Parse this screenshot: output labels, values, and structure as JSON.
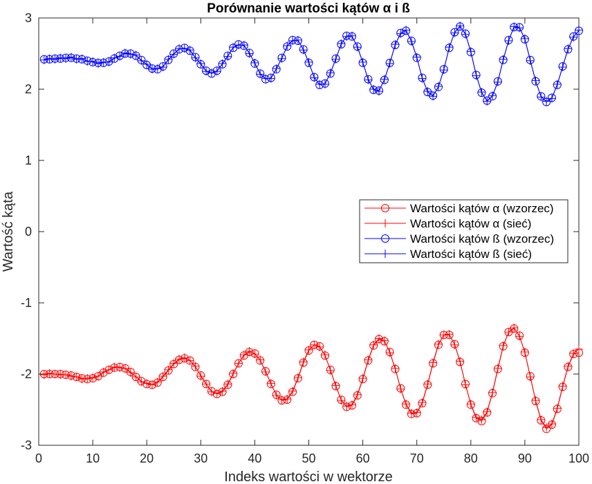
{
  "chart_data": {
    "type": "line",
    "title": "Porównanie wartości kątów α i ß",
    "xlabel": "Indeks wartości w wektorze",
    "ylabel": "Wartość kąta",
    "xlim": [
      0,
      100
    ],
    "ylim": [
      -3,
      3
    ],
    "xticks": [
      0,
      10,
      20,
      30,
      40,
      50,
      60,
      70,
      80,
      90,
      100
    ],
    "yticks": [
      -3,
      -2,
      -1,
      0,
      1,
      2,
      3
    ],
    "xtick_labels": [
      "0",
      "10",
      "20",
      "30",
      "40",
      "50",
      "60",
      "70",
      "80",
      "90",
      "100"
    ],
    "ytick_labels": [
      "-3",
      "-2",
      "-1",
      "0",
      "1",
      "2",
      "3"
    ],
    "grid": false,
    "legend_position": "center-right",
    "x": [
      1,
      2,
      3,
      4,
      5,
      6,
      7,
      8,
      9,
      10,
      11,
      12,
      13,
      14,
      15,
      16,
      17,
      18,
      19,
      20,
      21,
      22,
      23,
      24,
      25,
      26,
      27,
      28,
      29,
      30,
      31,
      32,
      33,
      34,
      35,
      36,
      37,
      38,
      39,
      40,
      41,
      42,
      43,
      44,
      45,
      46,
      47,
      48,
      49,
      50,
      51,
      52,
      53,
      54,
      55,
      56,
      57,
      58,
      59,
      60,
      61,
      62,
      63,
      64,
      65,
      66,
      67,
      68,
      69,
      70,
      71,
      72,
      73,
      74,
      75,
      76,
      77,
      78,
      79,
      80,
      81,
      82,
      83,
      84,
      85,
      86,
      87,
      88,
      89,
      90,
      91,
      92,
      93,
      94,
      95,
      96,
      97,
      98,
      99,
      100
    ],
    "series": [
      {
        "name": "Wartości kątów α (wzorzec)",
        "color": "#ff0000",
        "marker": "circle",
        "values": [
          -2.0,
          -2.0,
          -2.0,
          -2.0,
          -2.01,
          -2.02,
          -2.04,
          -2.06,
          -2.07,
          -2.06,
          -2.03,
          -1.98,
          -1.94,
          -1.91,
          -1.9,
          -1.92,
          -1.97,
          -2.04,
          -2.1,
          -2.14,
          -2.15,
          -2.12,
          -2.04,
          -1.95,
          -1.86,
          -1.8,
          -1.78,
          -1.81,
          -1.9,
          -2.02,
          -2.14,
          -2.24,
          -2.28,
          -2.25,
          -2.15,
          -2.0,
          -1.85,
          -1.74,
          -1.69,
          -1.71,
          -1.81,
          -1.96,
          -2.14,
          -2.29,
          -2.37,
          -2.36,
          -2.25,
          -2.06,
          -1.84,
          -1.67,
          -1.59,
          -1.61,
          -1.74,
          -1.94,
          -2.17,
          -2.36,
          -2.46,
          -2.44,
          -2.3,
          -2.07,
          -1.81,
          -1.6,
          -1.51,
          -1.54,
          -1.69,
          -1.93,
          -2.2,
          -2.43,
          -2.56,
          -2.55,
          -2.41,
          -2.15,
          -1.85,
          -1.59,
          -1.45,
          -1.45,
          -1.58,
          -1.83,
          -2.14,
          -2.43,
          -2.62,
          -2.66,
          -2.54,
          -2.27,
          -1.93,
          -1.61,
          -1.41,
          -1.36,
          -1.46,
          -1.7,
          -2.03,
          -2.38,
          -2.65,
          -2.77,
          -2.71,
          -2.49,
          -2.18,
          -1.9,
          -1.72,
          -1.7
        ]
      },
      {
        "name": "Wartości kątów α (sieć)",
        "color": "#ff0000",
        "marker": "plus",
        "values": [
          -2.01,
          -1.99,
          -2.0,
          -2.01,
          -2.01,
          -2.03,
          -2.04,
          -2.07,
          -2.06,
          -2.05,
          -2.03,
          -1.97,
          -1.94,
          -1.9,
          -1.91,
          -1.92,
          -1.98,
          -2.04,
          -2.11,
          -2.13,
          -2.15,
          -2.11,
          -2.03,
          -1.94,
          -1.85,
          -1.79,
          -1.77,
          -1.81,
          -1.89,
          -2.03,
          -2.14,
          -2.25,
          -2.27,
          -2.24,
          -2.14,
          -1.99,
          -1.85,
          -1.73,
          -1.68,
          -1.72,
          -1.8,
          -1.97,
          -2.13,
          -2.3,
          -2.36,
          -2.35,
          -2.24,
          -2.05,
          -1.83,
          -1.66,
          -1.59,
          -1.62,
          -1.73,
          -1.95,
          -2.16,
          -2.37,
          -2.45,
          -2.43,
          -2.29,
          -2.06,
          -1.8,
          -1.59,
          -1.5,
          -1.53,
          -1.7,
          -1.92,
          -2.21,
          -2.42,
          -2.55,
          -2.54,
          -2.4,
          -2.14,
          -1.84,
          -1.58,
          -1.45,
          -1.44,
          -1.59,
          -1.82,
          -2.15,
          -2.42,
          -2.61,
          -2.64,
          -2.53,
          -2.26,
          -1.92,
          -1.6,
          -1.41,
          -1.35,
          -1.47,
          -1.69,
          -2.04,
          -2.37,
          -2.64,
          -2.75,
          -2.7,
          -2.48,
          -2.17,
          -1.89,
          -1.71,
          -1.65
        ]
      },
      {
        "name": "Wartości kątów ß (wzorzec)",
        "color": "#0000ff",
        "marker": "circle",
        "values": [
          2.42,
          2.42,
          2.43,
          2.43,
          2.44,
          2.44,
          2.43,
          2.42,
          2.4,
          2.38,
          2.37,
          2.37,
          2.39,
          2.43,
          2.47,
          2.5,
          2.5,
          2.47,
          2.41,
          2.34,
          2.29,
          2.28,
          2.32,
          2.41,
          2.5,
          2.56,
          2.58,
          2.54,
          2.45,
          2.35,
          2.26,
          2.22,
          2.26,
          2.35,
          2.47,
          2.58,
          2.63,
          2.61,
          2.51,
          2.36,
          2.22,
          2.14,
          2.16,
          2.28,
          2.44,
          2.6,
          2.69,
          2.68,
          2.56,
          2.37,
          2.17,
          2.06,
          2.08,
          2.22,
          2.43,
          2.63,
          2.75,
          2.74,
          2.6,
          2.37,
          2.14,
          1.99,
          1.98,
          2.13,
          2.37,
          2.62,
          2.79,
          2.82,
          2.68,
          2.44,
          2.16,
          1.96,
          1.91,
          2.03,
          2.28,
          2.58,
          2.8,
          2.88,
          2.78,
          2.52,
          2.2,
          1.95,
          1.84,
          1.9,
          2.11,
          2.41,
          2.69,
          2.87,
          2.87,
          2.7,
          2.41,
          2.11,
          1.9,
          1.82,
          1.88,
          2.06,
          2.32,
          2.56,
          2.74,
          2.82
        ]
      },
      {
        "name": "Wartości kątów ß (sieć)",
        "color": "#0000ff",
        "marker": "plus",
        "values": [
          2.41,
          2.43,
          2.42,
          2.44,
          2.43,
          2.45,
          2.42,
          2.43,
          2.39,
          2.39,
          2.36,
          2.38,
          2.38,
          2.44,
          2.46,
          2.51,
          2.49,
          2.48,
          2.4,
          2.35,
          2.28,
          2.29,
          2.31,
          2.42,
          2.49,
          2.57,
          2.57,
          2.55,
          2.44,
          2.36,
          2.25,
          2.23,
          2.25,
          2.36,
          2.46,
          2.59,
          2.62,
          2.62,
          2.5,
          2.37,
          2.21,
          2.15,
          2.15,
          2.29,
          2.43,
          2.61,
          2.68,
          2.69,
          2.55,
          2.38,
          2.16,
          2.07,
          2.07,
          2.23,
          2.42,
          2.64,
          2.74,
          2.75,
          2.59,
          2.38,
          2.13,
          2.0,
          1.97,
          2.14,
          2.36,
          2.63,
          2.78,
          2.83,
          2.67,
          2.45,
          2.15,
          1.97,
          1.9,
          2.04,
          2.27,
          2.59,
          2.79,
          2.89,
          2.77,
          2.53,
          2.19,
          1.96,
          1.83,
          1.91,
          2.1,
          2.42,
          2.68,
          2.88,
          2.86,
          2.71,
          2.4,
          2.12,
          1.89,
          1.83,
          1.87,
          2.07,
          2.31,
          2.57,
          2.73,
          2.83
        ]
      }
    ]
  }
}
